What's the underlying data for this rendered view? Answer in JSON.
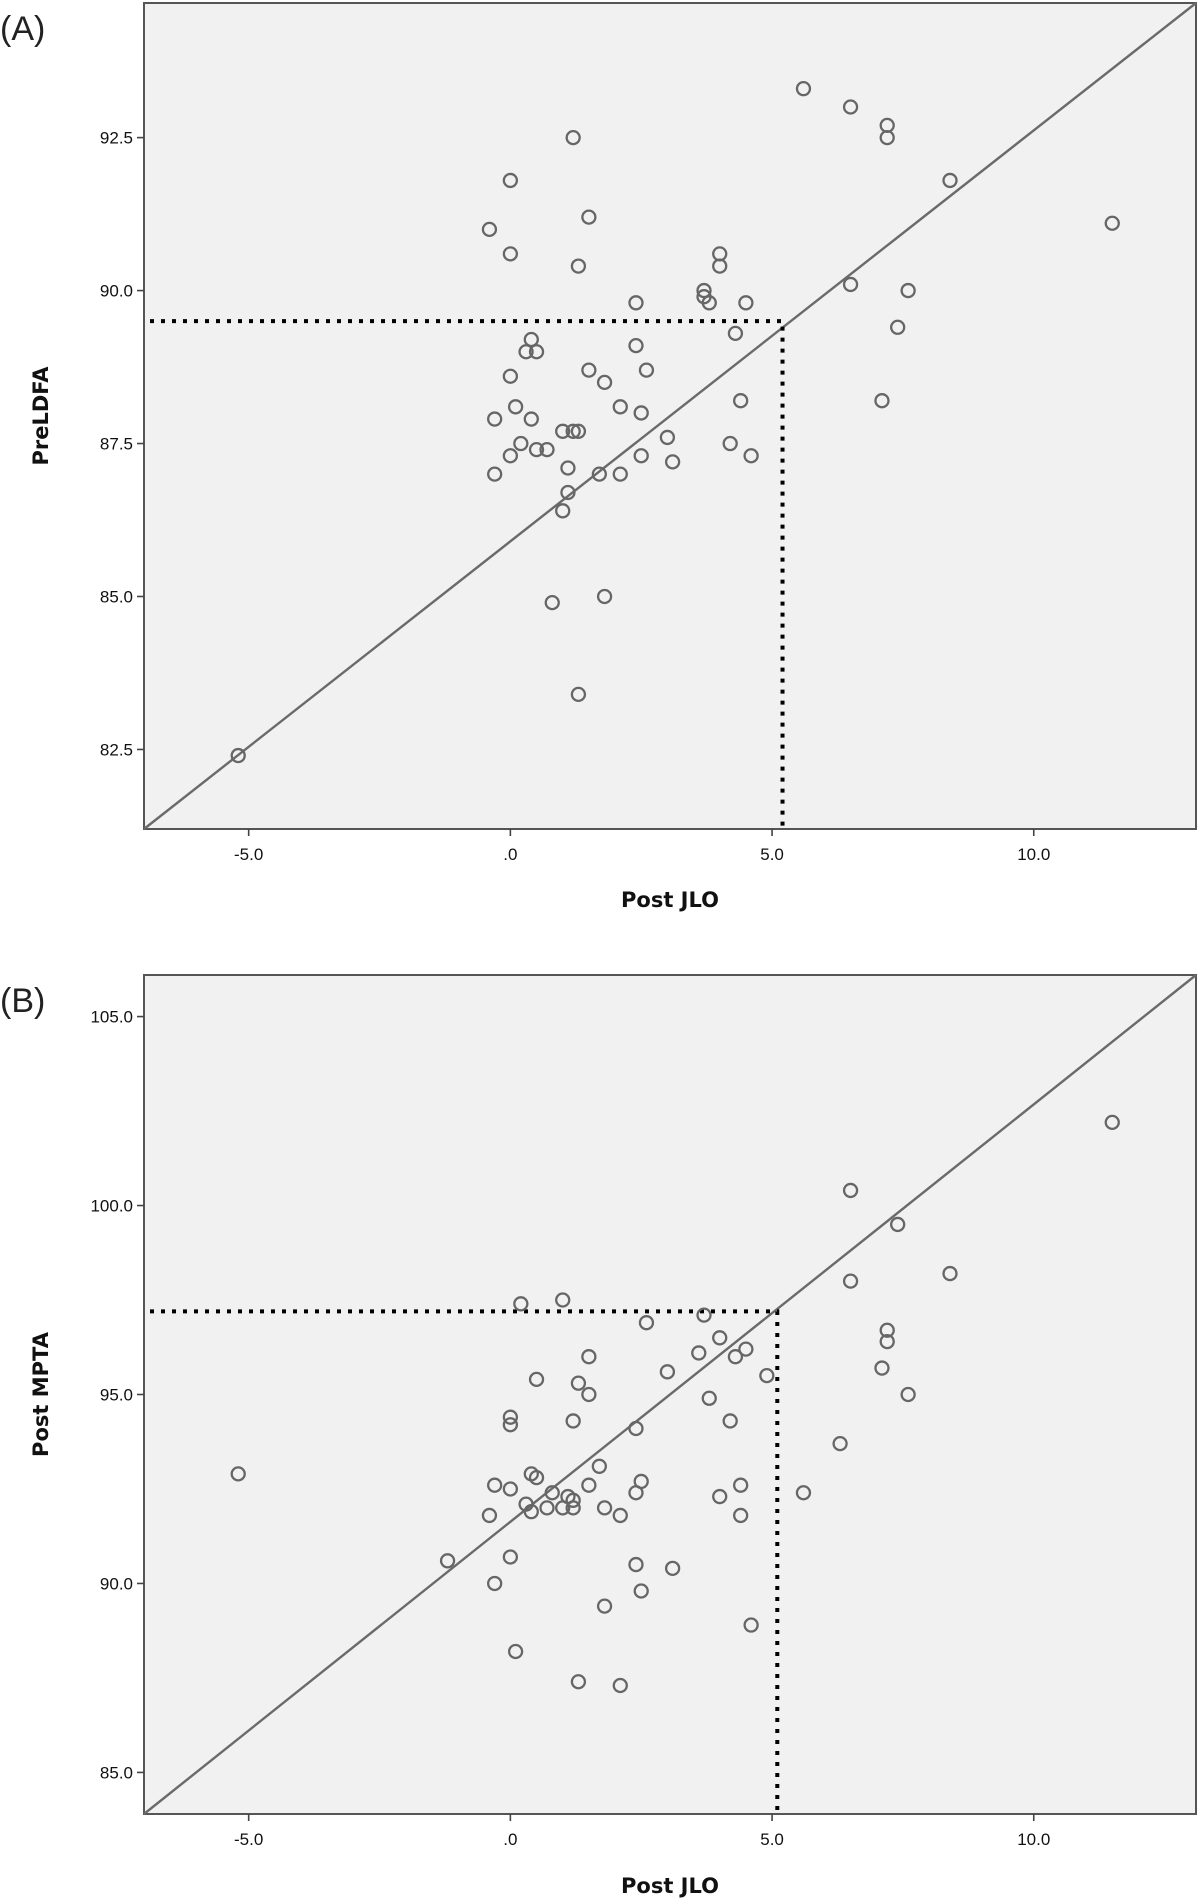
{
  "chart_data": [
    {
      "type": "scatter",
      "panel_label": "(A)",
      "xlabel": "Post JLO",
      "ylabel": "PreLDFA",
      "xlim": [
        -7.0,
        13.1
      ],
      "ylim": [
        81.2,
        94.7
      ],
      "x_ticks": [
        -5.0,
        0.0,
        5.0,
        10.0
      ],
      "x_tick_labels": [
        "-5.0",
        ".0",
        "5.0",
        "10.0"
      ],
      "y_ticks": [
        82.5,
        85.0,
        87.5,
        90.0,
        92.5
      ],
      "y_tick_labels": [
        "82.5",
        "85.0",
        "87.5",
        "90.0",
        "92.5"
      ],
      "reference_line": {
        "from": [
          -7.0,
          81.2
        ],
        "to": [
          13.1,
          94.7
        ]
      },
      "guide": {
        "x": 5.2,
        "y": 89.5
      },
      "points": [
        [
          -5.2,
          82.4
        ],
        [
          -0.4,
          91.0
        ],
        [
          0.0,
          91.8
        ],
        [
          0.0,
          90.6
        ],
        [
          -0.3,
          87.9
        ],
        [
          -0.3,
          87.0
        ],
        [
          0.0,
          87.3
        ],
        [
          0.0,
          88.6
        ],
        [
          0.1,
          88.1
        ],
        [
          0.2,
          87.5
        ],
        [
          0.3,
          89.0
        ],
        [
          0.4,
          89.2
        ],
        [
          0.4,
          87.9
        ],
        [
          0.5,
          87.4
        ],
        [
          0.5,
          89.0
        ],
        [
          0.7,
          87.4
        ],
        [
          0.8,
          84.9
        ],
        [
          1.0,
          87.7
        ],
        [
          1.0,
          86.4
        ],
        [
          1.1,
          86.7
        ],
        [
          1.1,
          87.1
        ],
        [
          1.2,
          92.5
        ],
        [
          1.2,
          87.7
        ],
        [
          1.3,
          87.7
        ],
        [
          1.3,
          90.4
        ],
        [
          1.3,
          83.4
        ],
        [
          1.5,
          91.2
        ],
        [
          1.5,
          88.7
        ],
        [
          1.7,
          87.0
        ],
        [
          1.8,
          88.5
        ],
        [
          1.8,
          85.0
        ],
        [
          2.1,
          88.1
        ],
        [
          2.1,
          87.0
        ],
        [
          2.4,
          89.8
        ],
        [
          2.4,
          89.1
        ],
        [
          2.5,
          88.0
        ],
        [
          2.5,
          87.3
        ],
        [
          2.6,
          88.7
        ],
        [
          3.0,
          87.6
        ],
        [
          3.1,
          87.2
        ],
        [
          3.7,
          89.9
        ],
        [
          3.7,
          90.0
        ],
        [
          3.8,
          89.8
        ],
        [
          4.0,
          90.6
        ],
        [
          4.0,
          90.4
        ],
        [
          4.2,
          87.5
        ],
        [
          4.3,
          89.3
        ],
        [
          4.4,
          88.2
        ],
        [
          4.5,
          89.8
        ],
        [
          4.6,
          87.3
        ],
        [
          5.6,
          93.3
        ],
        [
          6.5,
          93.0
        ],
        [
          6.5,
          90.1
        ],
        [
          7.1,
          88.2
        ],
        [
          7.2,
          92.7
        ],
        [
          7.2,
          92.5
        ],
        [
          7.4,
          89.4
        ],
        [
          7.6,
          90.0
        ],
        [
          8.4,
          91.8
        ],
        [
          11.5,
          91.1
        ]
      ]
    },
    {
      "type": "scatter",
      "panel_label": "(B)",
      "xlabel": "Post JLO",
      "ylabel": "Post MPTA",
      "xlim": [
        -7.0,
        13.1
      ],
      "ylim": [
        83.9,
        106.1
      ],
      "x_ticks": [
        -5.0,
        0.0,
        5.0,
        10.0
      ],
      "x_tick_labels": [
        "-5.0",
        ".0",
        "5.0",
        "10.0"
      ],
      "y_ticks": [
        85.0,
        90.0,
        95.0,
        100.0,
        105.0
      ],
      "y_tick_labels": [
        "85.0",
        "90.0",
        "95.0",
        "100.0",
        "105.0"
      ],
      "reference_line": {
        "from": [
          -7.0,
          83.9
        ],
        "to": [
          13.1,
          106.1
        ]
      },
      "guide": {
        "x": 5.1,
        "y": 97.2
      },
      "points": [
        [
          -5.2,
          92.9
        ],
        [
          -1.2,
          90.6
        ],
        [
          -0.3,
          92.6
        ],
        [
          -0.4,
          91.8
        ],
        [
          -0.3,
          90.0
        ],
        [
          0.0,
          94.4
        ],
        [
          0.0,
          94.2
        ],
        [
          0.0,
          92.5
        ],
        [
          0.0,
          90.7
        ],
        [
          0.1,
          88.2
        ],
        [
          0.2,
          97.4
        ],
        [
          0.3,
          92.1
        ],
        [
          0.4,
          91.9
        ],
        [
          0.4,
          92.9
        ],
        [
          0.5,
          92.8
        ],
        [
          0.5,
          95.4
        ],
        [
          0.7,
          92.0
        ],
        [
          0.8,
          92.4
        ],
        [
          1.0,
          97.5
        ],
        [
          1.0,
          92.0
        ],
        [
          1.1,
          92.3
        ],
        [
          1.2,
          92.2
        ],
        [
          1.2,
          94.3
        ],
        [
          1.2,
          92.0
        ],
        [
          1.3,
          95.3
        ],
        [
          1.3,
          87.4
        ],
        [
          1.5,
          96.0
        ],
        [
          1.5,
          95.0
        ],
        [
          1.5,
          92.6
        ],
        [
          1.7,
          93.1
        ],
        [
          1.8,
          92.0
        ],
        [
          1.8,
          89.4
        ],
        [
          2.1,
          91.8
        ],
        [
          2.1,
          87.3
        ],
        [
          2.4,
          94.1
        ],
        [
          2.4,
          92.4
        ],
        [
          2.4,
          90.5
        ],
        [
          2.5,
          92.7
        ],
        [
          2.5,
          89.8
        ],
        [
          2.6,
          96.9
        ],
        [
          3.0,
          95.6
        ],
        [
          3.1,
          90.4
        ],
        [
          3.6,
          96.1
        ],
        [
          3.7,
          97.1
        ],
        [
          3.8,
          94.9
        ],
        [
          4.0,
          96.5
        ],
        [
          4.0,
          92.3
        ],
        [
          4.2,
          94.3
        ],
        [
          4.3,
          96.0
        ],
        [
          4.4,
          92.6
        ],
        [
          4.4,
          91.8
        ],
        [
          4.5,
          96.2
        ],
        [
          4.6,
          88.9
        ],
        [
          4.9,
          95.5
        ],
        [
          5.6,
          92.4
        ],
        [
          6.3,
          93.7
        ],
        [
          6.5,
          100.4
        ],
        [
          6.5,
          98.0
        ],
        [
          7.1,
          95.7
        ],
        [
          7.2,
          96.7
        ],
        [
          7.2,
          96.4
        ],
        [
          7.4,
          99.5
        ],
        [
          7.6,
          95.0
        ],
        [
          8.4,
          98.2
        ],
        [
          11.5,
          102.2
        ]
      ]
    }
  ]
}
